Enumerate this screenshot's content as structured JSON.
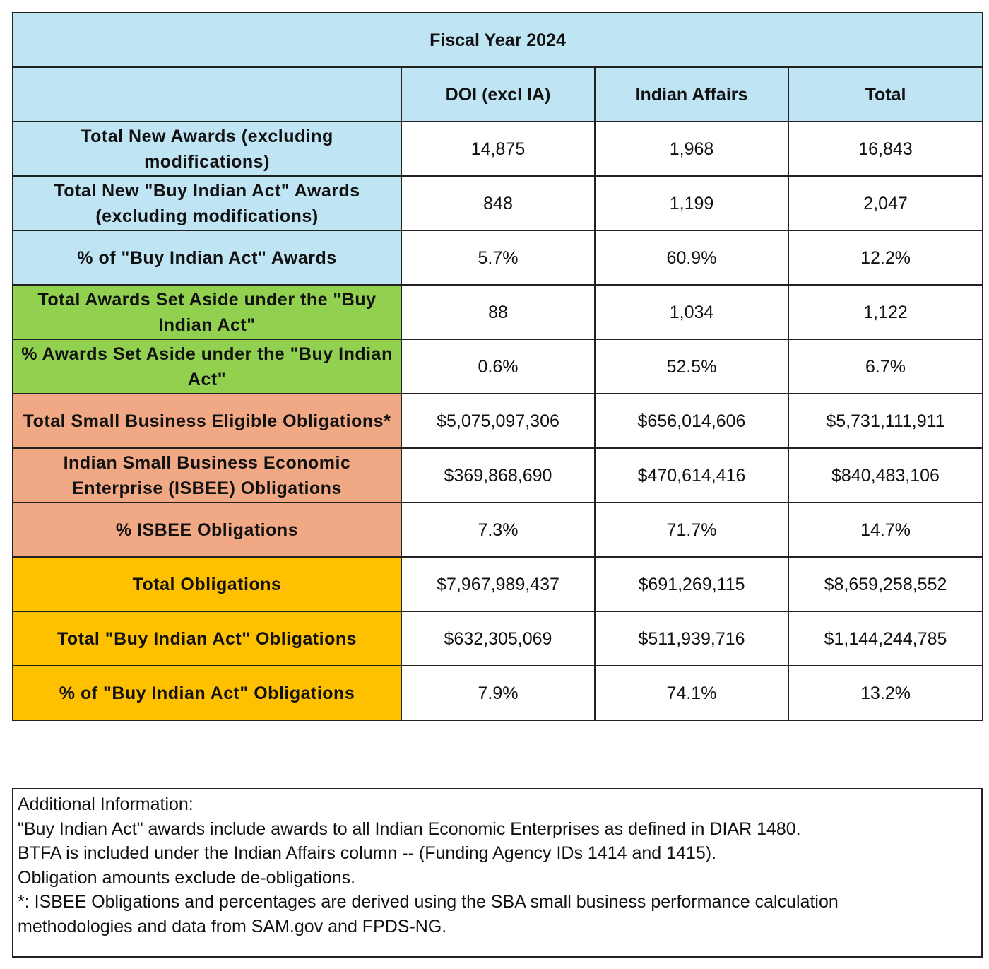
{
  "table": {
    "title": "Fiscal Year 2024",
    "columns": [
      "",
      "DOI (excl IA)",
      "Indian Affairs",
      "Total"
    ],
    "colors": {
      "blue": "#bfe4f4",
      "green": "#92d050",
      "salmon": "#f1a985",
      "gold": "#ffc000"
    },
    "rows": [
      {
        "label": "Total New Awards (excluding modifications)",
        "color": "blue",
        "values": [
          "14,875",
          "1,968",
          "16,843"
        ]
      },
      {
        "label": "Total New \"Buy Indian Act\" Awards (excluding modifications)",
        "color": "blue",
        "values": [
          "848",
          "1,199",
          "2,047"
        ]
      },
      {
        "label": "% of \"Buy Indian Act\" Awards",
        "color": "blue",
        "values": [
          "5.7%",
          "60.9%",
          "12.2%"
        ]
      },
      {
        "label": "Total Awards Set Aside under the \"Buy Indian Act\"",
        "color": "green",
        "values": [
          "88",
          "1,034",
          "1,122"
        ]
      },
      {
        "label": "% Awards Set Aside under the \"Buy Indian Act\"",
        "color": "green",
        "values": [
          "0.6%",
          "52.5%",
          "6.7%"
        ]
      },
      {
        "label": "Total Small Business Eligible Obligations*",
        "color": "salmon",
        "values": [
          "$5,075,097,306",
          "$656,014,606",
          "$5,731,111,911"
        ]
      },
      {
        "label": "Indian Small Business Economic Enterprise (ISBEE) Obligations",
        "color": "salmon",
        "values": [
          "$369,868,690",
          "$470,614,416",
          "$840,483,106"
        ]
      },
      {
        "label": "% ISBEE Obligations",
        "color": "salmon",
        "values": [
          "7.3%",
          "71.7%",
          "14.7%"
        ]
      },
      {
        "label": "Total Obligations",
        "color": "gold",
        "values": [
          "$7,967,989,437",
          "$691,269,115",
          "$8,659,258,552"
        ]
      },
      {
        "label": "Total \"Buy Indian Act\" Obligations",
        "color": "gold",
        "values": [
          "$632,305,069",
          "$511,939,716",
          "$1,144,244,785"
        ]
      },
      {
        "label": "% of \"Buy Indian Act\" Obligations",
        "color": "gold",
        "values": [
          "7.9%",
          "74.1%",
          "13.2%"
        ]
      }
    ]
  },
  "notes": [
    "Additional Information:",
    "\"Buy Indian Act\" awards include awards to all Indian Economic Enterprises as defined in DIAR 1480.",
    "BTFA is included under the Indian Affairs column -- (Funding Agency IDs 1414 and 1415).",
    "Obligation amounts exclude de-obligations.",
    "*: ISBEE Obligations and percentages are derived using the SBA small business performance calculation",
    "methodologies and data from SAM.gov and FPDS-NG."
  ]
}
